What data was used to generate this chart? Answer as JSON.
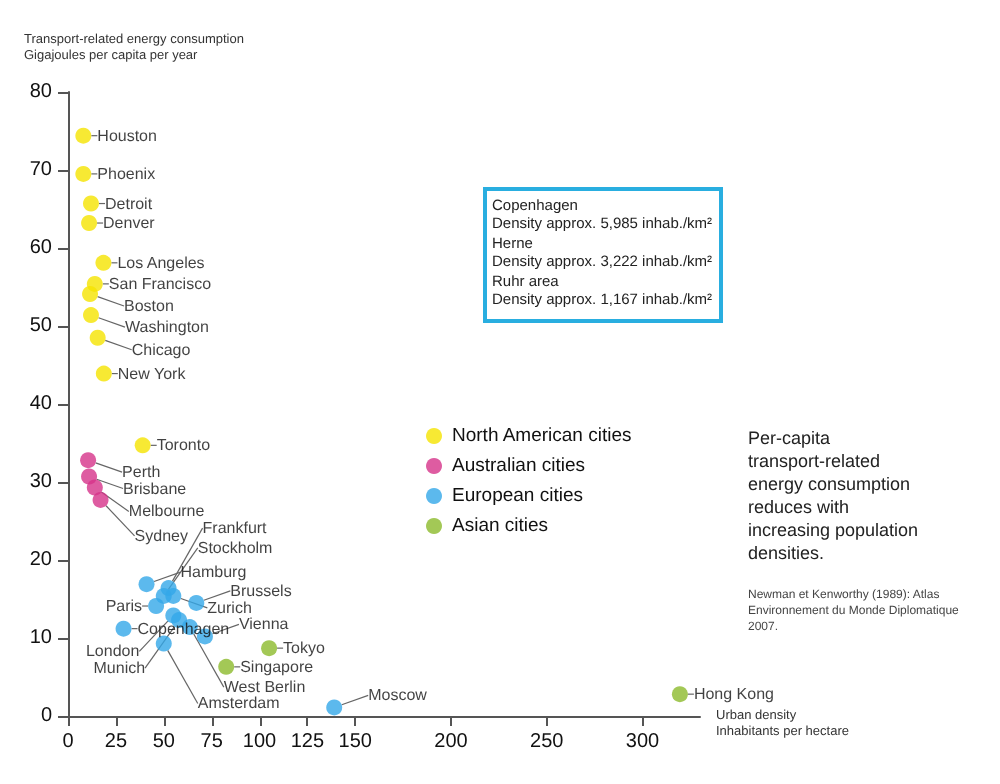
{
  "chart_data": {
    "type": "scatter",
    "xlabel": "Urban density\nInhabitants per hectare",
    "ylabel": "Transport-related energy consumption\nGigajoules per capita per year",
    "xlim": [
      0,
      330
    ],
    "xticks": [
      0,
      25,
      50,
      75,
      100,
      125,
      150,
      200,
      250,
      300
    ],
    "ylim": [
      0,
      80
    ],
    "yticks": [
      0,
      10,
      20,
      30,
      40,
      50,
      60,
      70,
      80
    ],
    "grid": false,
    "legend": "right",
    "marker": "circle",
    "series": [
      {
        "name": "North American cities",
        "color": "#f5e400",
        "x": [
          8,
          8,
          12,
          11,
          18.5,
          14,
          11.5,
          12,
          15.5,
          18.7,
          39
        ],
        "values": [
          74.4,
          69.5,
          65.7,
          63.2,
          58.1,
          55.4,
          54.1,
          51.4,
          48.5,
          43.9,
          34.7
        ],
        "value_labels": [
          "Houston",
          "Phoenix",
          "Detroit",
          "Denver",
          "Los Angeles",
          "San Francisco",
          "Boston",
          "Washington",
          "Chicago",
          "New York",
          "Toronto"
        ]
      },
      {
        "name": "Australian cities",
        "color": "#d6338a",
        "x": [
          10.5,
          11,
          14,
          17
        ],
        "values": [
          32.8,
          30.7,
          29.3,
          27.7
        ],
        "value_labels": [
          "Perth",
          "Brisbane",
          "Melbourne",
          "Sydney"
        ]
      },
      {
        "name": "European cities",
        "color": "#33a8e8",
        "x": [
          41,
          50,
          52.5,
          55,
          67,
          46,
          55,
          58,
          63.6,
          71.5,
          29,
          50,
          139
        ],
        "values": [
          16.9,
          15.4,
          16.4,
          15.4,
          14.5,
          14.1,
          12.9,
          12.3,
          11.4,
          10.2,
          11.2,
          9.3,
          1.1
        ],
        "value_labels": [
          "Hamburg",
          "Stockholm",
          "Frankfurt",
          "Zurich",
          "Brussels",
          "Paris",
          "London",
          "Munich",
          "West Berlin",
          "Vienna",
          "Copenhagen",
          "Amsterdam",
          "Moscow"
        ]
      },
      {
        "name": "Asian cities",
        "color": "#8cba2c",
        "x": [
          105,
          82.6,
          319.5
        ],
        "values": [
          8.7,
          6.3,
          2.8
        ],
        "value_labels": [
          "Tokyo",
          "Singapore",
          "Hong Kong"
        ]
      }
    ],
    "annotations": [
      "Copenhagen\nDensity approx. 5,985 inhab./km²",
      "Herne\nDensity approx. 3,222 inhab./km²",
      "Ruhr area\nDensity approx. 1,167 inhab./km²",
      "Per-capita transport-related energy consumption reduces with increasing population densities.",
      "Newman et Kenworthy (1989): Atlas Environnement du Monde Diplomatique 2007."
    ]
  }
}
